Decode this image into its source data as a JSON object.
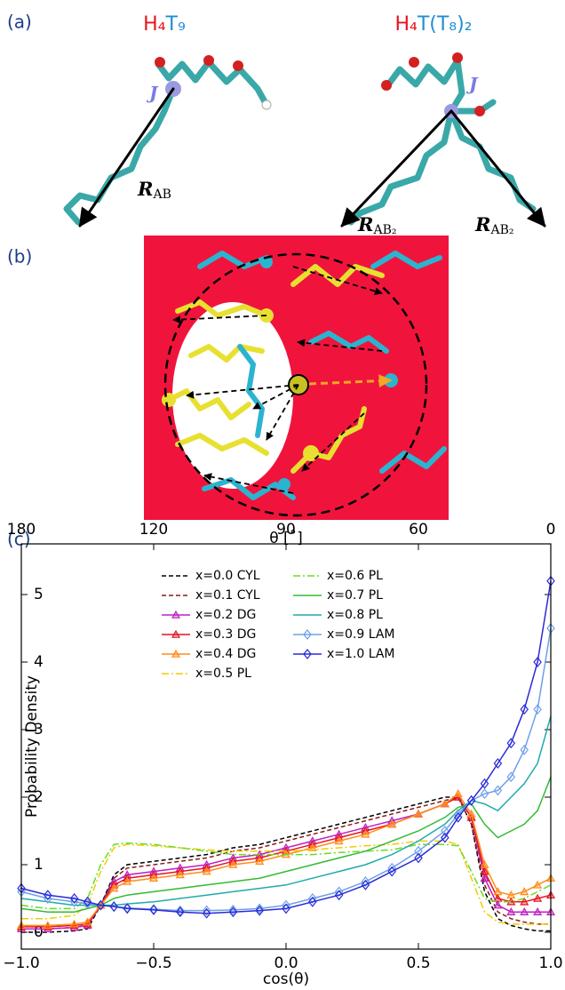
{
  "panels": {
    "a": {
      "label": "(a)",
      "molecule_left": {
        "head": "H₄",
        "tail": "T₉"
      },
      "molecule_right": {
        "head": "H₄",
        "mid": "T",
        "tail": "(T₈)₂"
      },
      "joint": "J",
      "vectors": [
        {
          "symbol": "R",
          "sub": "AB"
        },
        {
          "symbol": "R",
          "sub": "AB₂"
        },
        {
          "symbol": "R",
          "sub": "AB₂"
        }
      ]
    },
    "b": {
      "label": "(b)"
    },
    "c": {
      "label": "(c)"
    }
  },
  "chart_data": {
    "type": "line",
    "xlabel": "cos(θ)",
    "ylabel": "Probability Density",
    "x2label": "θ [˚]",
    "xlim": [
      -1.0,
      1.0
    ],
    "ylim": [
      -0.25,
      5.75
    ],
    "xticks": [
      {
        "value": -1.0,
        "label": "−1.0"
      },
      {
        "value": -0.5,
        "label": "−0.5"
      },
      {
        "value": 0,
        "label": "0.0"
      },
      0.5,
      {
        "value": 1,
        "label": "1.0"
      }
    ],
    "yticks": [
      0,
      1,
      2,
      3,
      4,
      5
    ],
    "x2ticks": [
      180,
      120,
      90,
      60,
      0
    ],
    "legend": "upper center",
    "x": [
      -1.0,
      -0.9,
      -0.8,
      -0.75,
      -0.7,
      -0.65,
      -0.6,
      -0.5,
      -0.4,
      -0.3,
      -0.2,
      -0.1,
      0.0,
      0.1,
      0.2,
      0.3,
      0.4,
      0.5,
      0.6,
      0.65,
      0.7,
      0.75,
      0.8,
      0.85,
      0.9,
      0.95,
      1.0
    ],
    "series": [
      {
        "name": "x=0.0 CYL",
        "color": "#000000",
        "style": "dashed",
        "values": [
          0,
          0,
          0.02,
          0.05,
          0.4,
          0.85,
          1.0,
          1.05,
          1.1,
          1.15,
          1.25,
          1.3,
          1.4,
          1.5,
          1.6,
          1.7,
          1.8,
          1.9,
          2.0,
          2.0,
          1.6,
          0.6,
          0.2,
          0.1,
          0.05,
          0.02,
          0.02
        ]
      },
      {
        "name": "x=0.1 CYL",
        "color": "#8b1a1a",
        "style": "dashed",
        "values": [
          0.05,
          0.05,
          0.07,
          0.1,
          0.4,
          0.8,
          0.95,
          1.0,
          1.05,
          1.1,
          1.2,
          1.25,
          1.35,
          1.45,
          1.55,
          1.65,
          1.75,
          1.85,
          1.95,
          2.0,
          1.6,
          0.7,
          0.3,
          0.2,
          0.15,
          0.12,
          0.12
        ]
      },
      {
        "name": "x=0.2 DG",
        "color": "#c020c0",
        "style": "solid",
        "marker": "triangle",
        "values": [
          0.05,
          0.05,
          0.07,
          0.1,
          0.4,
          0.75,
          0.85,
          0.9,
          0.95,
          1.0,
          1.1,
          1.15,
          1.25,
          1.35,
          1.45,
          1.55,
          1.65,
          1.75,
          1.9,
          2.0,
          1.7,
          0.8,
          0.4,
          0.3,
          0.3,
          0.3,
          0.3
        ]
      },
      {
        "name": "x=0.3 DG",
        "color": "#e8141e",
        "style": "solid",
        "marker": "triangle",
        "values": [
          0.08,
          0.08,
          0.1,
          0.12,
          0.4,
          0.7,
          0.8,
          0.85,
          0.9,
          0.95,
          1.05,
          1.1,
          1.2,
          1.3,
          1.4,
          1.5,
          1.6,
          1.75,
          1.9,
          2.0,
          1.7,
          0.9,
          0.5,
          0.45,
          0.45,
          0.5,
          0.55
        ]
      },
      {
        "name": "x=0.4 DG",
        "color": "#ff8c1a",
        "style": "solid",
        "marker": "triangle",
        "values": [
          0.1,
          0.1,
          0.12,
          0.15,
          0.4,
          0.65,
          0.75,
          0.8,
          0.85,
          0.9,
          1.0,
          1.05,
          1.15,
          1.25,
          1.35,
          1.45,
          1.6,
          1.75,
          1.9,
          2.05,
          1.75,
          1.0,
          0.6,
          0.55,
          0.6,
          0.7,
          0.8
        ]
      },
      {
        "name": "x=0.5 PL",
        "color": "#f2cc00",
        "style": "dashdot",
        "values": [
          0.2,
          0.2,
          0.25,
          0.4,
          0.9,
          1.25,
          1.3,
          1.28,
          1.25,
          1.22,
          1.2,
          1.2,
          1.2,
          1.22,
          1.25,
          1.28,
          1.3,
          1.35,
          1.35,
          1.3,
          0.8,
          0.3,
          0.15,
          0.12,
          0.12,
          0.12,
          0.12
        ]
      },
      {
        "name": "x=0.6 PL",
        "color": "#66dd22",
        "style": "dashdot",
        "values": [
          0.4,
          0.35,
          0.35,
          0.5,
          1.0,
          1.3,
          1.32,
          1.3,
          1.25,
          1.2,
          1.15,
          1.15,
          1.15,
          1.15,
          1.18,
          1.2,
          1.22,
          1.3,
          1.3,
          1.28,
          0.9,
          0.5,
          0.45,
          0.45,
          0.5,
          0.6,
          0.7
        ]
      },
      {
        "name": "x=0.7 PL",
        "color": "#33bb33",
        "style": "solid",
        "values": [
          0.35,
          0.3,
          0.3,
          0.35,
          0.4,
          0.5,
          0.55,
          0.6,
          0.65,
          0.7,
          0.75,
          0.8,
          0.9,
          1.0,
          1.1,
          1.2,
          1.35,
          1.5,
          1.7,
          1.85,
          1.9,
          1.6,
          1.4,
          1.5,
          1.6,
          1.8,
          2.3
        ]
      },
      {
        "name": "x=0.8 PL",
        "color": "#22aaaa",
        "style": "solid",
        "values": [
          0.5,
          0.45,
          0.4,
          0.4,
          0.4,
          0.4,
          0.42,
          0.45,
          0.5,
          0.55,
          0.6,
          0.65,
          0.7,
          0.8,
          0.9,
          1.0,
          1.15,
          1.35,
          1.6,
          1.8,
          1.95,
          1.9,
          1.8,
          2.0,
          2.2,
          2.5,
          3.2
        ]
      },
      {
        "name": "x=0.9 LAM",
        "color": "#6ea0e8",
        "style": "solid",
        "marker": "diamond",
        "values": [
          0.6,
          0.5,
          0.45,
          0.42,
          0.4,
          0.38,
          0.36,
          0.34,
          0.32,
          0.32,
          0.33,
          0.35,
          0.4,
          0.5,
          0.6,
          0.75,
          0.95,
          1.2,
          1.5,
          1.75,
          1.95,
          2.05,
          2.1,
          2.3,
          2.7,
          3.3,
          4.5
        ]
      },
      {
        "name": "x=1.0 LAM",
        "color": "#2a2ad8",
        "style": "solid",
        "marker": "diamond",
        "values": [
          0.65,
          0.55,
          0.5,
          0.45,
          0.4,
          0.38,
          0.35,
          0.33,
          0.3,
          0.28,
          0.3,
          0.32,
          0.35,
          0.45,
          0.55,
          0.7,
          0.9,
          1.1,
          1.4,
          1.7,
          1.95,
          2.2,
          2.5,
          2.8,
          3.3,
          4.0,
          5.2
        ]
      }
    ]
  }
}
